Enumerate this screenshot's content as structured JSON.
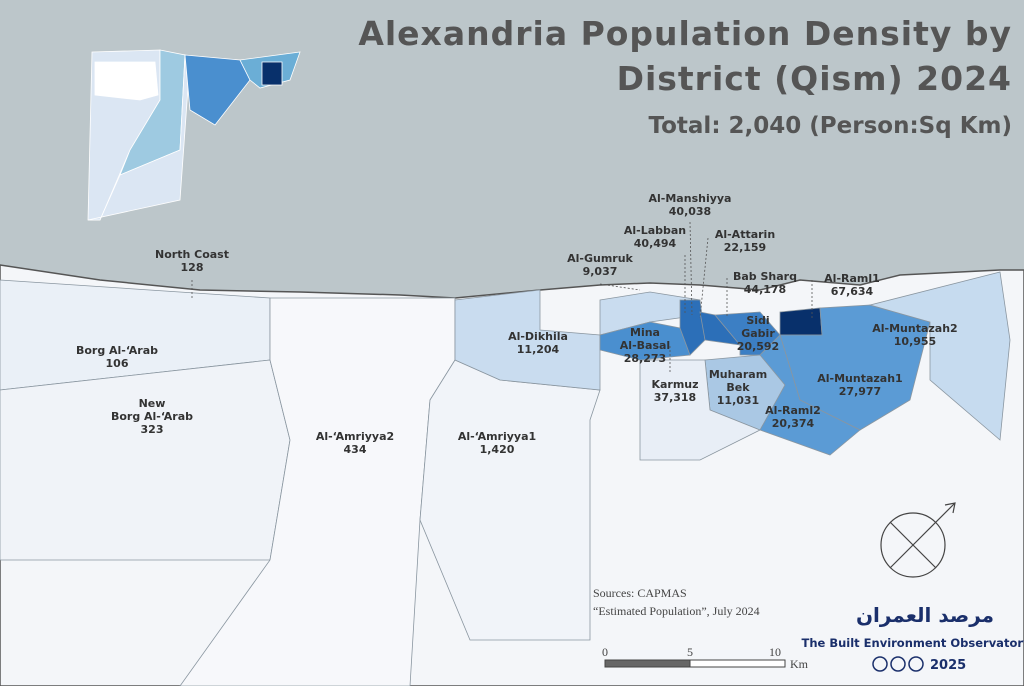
{
  "header": {
    "title_lines": [
      "Alexandria Population Density by",
      "District (Qism) 2024"
    ],
    "subtitle": "Total: 2,040 (Person:Sq Km)"
  },
  "districts": [
    {
      "name": [
        "North Coast"
      ],
      "density": "128"
    },
    {
      "name": [
        "Borg Al-‘Arab"
      ],
      "density": "106"
    },
    {
      "name": [
        "New",
        "Borg Al-‘Arab"
      ],
      "density": "323"
    },
    {
      "name": [
        "Al-‘Amriyya2"
      ],
      "density": "434"
    },
    {
      "name": [
        "Al-‘Amriyya1"
      ],
      "density": "1,420"
    },
    {
      "name": [
        "Al-Dikhila"
      ],
      "density": "11,204"
    },
    {
      "name": [
        "Al-Gumruk"
      ],
      "density": "9,037"
    },
    {
      "name": [
        "Al-Labban"
      ],
      "density": "40,494"
    },
    {
      "name": [
        "Al-Manshiyya"
      ],
      "density": "40,038"
    },
    {
      "name": [
        "Al-Attarin"
      ],
      "density": "22,159"
    },
    {
      "name": [
        "Bab Sharq"
      ],
      "density": "44,178"
    },
    {
      "name": [
        "Al-Raml1"
      ],
      "density": "67,634"
    },
    {
      "name": [
        "Al-Muntazah2"
      ],
      "density": "10,955"
    },
    {
      "name": [
        "Mina",
        "Al-Basal"
      ],
      "density": "28,273"
    },
    {
      "name": [
        "Karmuz"
      ],
      "density": "37,318"
    },
    {
      "name": [
        "Sidi",
        "Gabir"
      ],
      "density": "20,592"
    },
    {
      "name": [
        "Muharam",
        "Bek"
      ],
      "density": "11,031"
    },
    {
      "name": [
        "Al-Muntazah1"
      ],
      "density": "27,977"
    },
    {
      "name": [
        "Al-Raml2"
      ],
      "density": "20,374"
    }
  ],
  "sources": [
    "Sources: CAPMAS",
    "“Estimated Population”, July 2024"
  ],
  "scale": {
    "ticks": [
      "0",
      "5",
      "10"
    ],
    "unit": "Km"
  },
  "logo": {
    "arabic": "مرصد العمران",
    "english": "The Built Environment Observatory",
    "year": "2025"
  }
}
